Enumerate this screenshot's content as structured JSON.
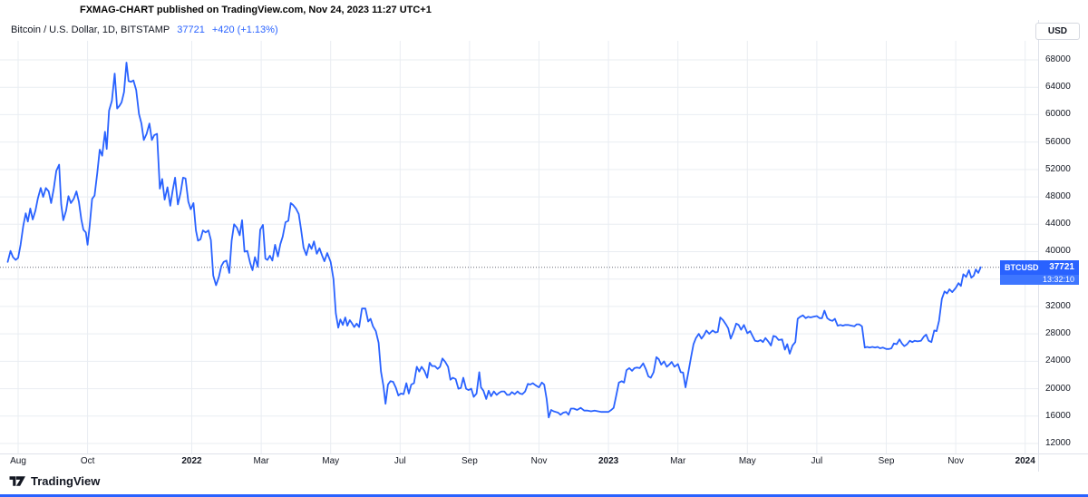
{
  "attribution": "FXMAG-CHART published on TradingView.com, Nov 24, 2023 11:27 UTC+1",
  "legend": {
    "symbol_text": "Bitcoin / U.S. Dollar, 1D, BITSTAMP",
    "price": "37721",
    "change": "+420 (+1.13%)"
  },
  "axis_currency_button": "USD",
  "price_badge": {
    "symbol": "BTCUSD",
    "price": "37721",
    "countdown": "13:32:10"
  },
  "footer": {
    "brand": "TradingView"
  },
  "colors": {
    "accent_blue": "#2962FF",
    "text_dark": "#131722",
    "grid": "#e9edf2",
    "axis_border": "#dfe2ea"
  },
  "chart_data": {
    "type": "line",
    "title": "Bitcoin / U.S. Dollar",
    "symbol": "BTCUSD",
    "exchange": "BITSTAMP",
    "interval": "1D",
    "y_axis_currency": "USD",
    "current_price": 37721,
    "change": "+420",
    "change_pct": "+1.13%",
    "x_unit": "months since 2021-08-01",
    "visible_ylim": [
      10500,
      70800
    ],
    "y_ticks": [
      68000,
      64000,
      60000,
      56000,
      52000,
      48000,
      44000,
      40000,
      36000,
      32000,
      28000,
      24000,
      20000,
      16000,
      12000
    ],
    "x_ticks": [
      {
        "label": "Aug",
        "t": 0
      },
      {
        "label": "Oct",
        "t": 2
      },
      {
        "label": "2022",
        "t": 5,
        "major": true
      },
      {
        "label": "Mar",
        "t": 7
      },
      {
        "label": "May",
        "t": 9
      },
      {
        "label": "Jul",
        "t": 11
      },
      {
        "label": "Sep",
        "t": 13
      },
      {
        "label": "Nov",
        "t": 15
      },
      {
        "label": "2023",
        "t": 17,
        "major": true
      },
      {
        "label": "Mar",
        "t": 19
      },
      {
        "label": "May",
        "t": 21
      },
      {
        "label": "Jul",
        "t": 23
      },
      {
        "label": "Sep",
        "t": 25
      },
      {
        "label": "Nov",
        "t": 27
      },
      {
        "label": "2024",
        "t": 29,
        "major": true
      }
    ],
    "points": [
      [
        -0.3,
        38500
      ],
      [
        -0.22,
        40100
      ],
      [
        -0.15,
        39200
      ],
      [
        -0.07,
        38800
      ],
      [
        0,
        39100
      ],
      [
        0.07,
        41000
      ],
      [
        0.15,
        43800
      ],
      [
        0.22,
        45600
      ],
      [
        0.28,
        44400
      ],
      [
        0.35,
        46300
      ],
      [
        0.42,
        44700
      ],
      [
        0.5,
        46000
      ],
      [
        0.57,
        47800
      ],
      [
        0.65,
        49300
      ],
      [
        0.72,
        48000
      ],
      [
        0.8,
        49300
      ],
      [
        0.88,
        48800
      ],
      [
        0.95,
        47100
      ],
      [
        1.03,
        49300
      ],
      [
        1.1,
        51800
      ],
      [
        1.18,
        52700
      ],
      [
        1.24,
        46900
      ],
      [
        1.3,
        44600
      ],
      [
        1.38,
        46000
      ],
      [
        1.45,
        48100
      ],
      [
        1.52,
        47100
      ],
      [
        1.6,
        47700
      ],
      [
        1.68,
        48800
      ],
      [
        1.75,
        47300
      ],
      [
        1.82,
        44700
      ],
      [
        1.88,
        43200
      ],
      [
        1.95,
        42800
      ],
      [
        2,
        41000
      ],
      [
        2.06,
        43800
      ],
      [
        2.13,
        47700
      ],
      [
        2.2,
        48200
      ],
      [
        2.28,
        51500
      ],
      [
        2.35,
        54900
      ],
      [
        2.42,
        54000
      ],
      [
        2.5,
        57500
      ],
      [
        2.55,
        55000
      ],
      [
        2.62,
        60600
      ],
      [
        2.7,
        62000
      ],
      [
        2.78,
        66000
      ],
      [
        2.85,
        60900
      ],
      [
        2.92,
        61300
      ],
      [
        2.98,
        61800
      ],
      [
        3.05,
        63300
      ],
      [
        3.12,
        67600
      ],
      [
        3.18,
        64900
      ],
      [
        3.25,
        64800
      ],
      [
        3.32,
        65000
      ],
      [
        3.4,
        63600
      ],
      [
        3.48,
        60100
      ],
      [
        3.55,
        58700
      ],
      [
        3.62,
        56300
      ],
      [
        3.7,
        57200
      ],
      [
        3.78,
        58700
      ],
      [
        3.85,
        56300
      ],
      [
        3.92,
        57000
      ],
      [
        4,
        57200
      ],
      [
        4.08,
        49200
      ],
      [
        4.15,
        50600
      ],
      [
        4.22,
        47600
      ],
      [
        4.3,
        49400
      ],
      [
        4.38,
        46700
      ],
      [
        4.45,
        48900
      ],
      [
        4.52,
        50800
      ],
      [
        4.6,
        46900
      ],
      [
        4.68,
        48600
      ],
      [
        4.75,
        50800
      ],
      [
        4.82,
        50700
      ],
      [
        4.9,
        47300
      ],
      [
        4.97,
        46200
      ],
      [
        5.05,
        47100
      ],
      [
        5.12,
        43100
      ],
      [
        5.18,
        41600
      ],
      [
        5.25,
        41800
      ],
      [
        5.32,
        43100
      ],
      [
        5.4,
        42800
      ],
      [
        5.48,
        43100
      ],
      [
        5.55,
        41700
      ],
      [
        5.62,
        36500
      ],
      [
        5.7,
        35100
      ],
      [
        5.78,
        36300
      ],
      [
        5.85,
        37900
      ],
      [
        5.92,
        38500
      ],
      [
        6,
        38700
      ],
      [
        6.08,
        36900
      ],
      [
        6.15,
        41600
      ],
      [
        6.22,
        44000
      ],
      [
        6.3,
        43500
      ],
      [
        6.38,
        42400
      ],
      [
        6.45,
        44600
      ],
      [
        6.52,
        40000
      ],
      [
        6.6,
        40100
      ],
      [
        6.68,
        38400
      ],
      [
        6.75,
        37300
      ],
      [
        6.82,
        39200
      ],
      [
        6.9,
        37800
      ],
      [
        6.97,
        43200
      ],
      [
        7.05,
        43900
      ],
      [
        7.12,
        39000
      ],
      [
        7.18,
        38800
      ],
      [
        7.25,
        39400
      ],
      [
        7.32,
        38700
      ],
      [
        7.4,
        41000
      ],
      [
        7.48,
        39300
      ],
      [
        7.55,
        41100
      ],
      [
        7.62,
        42200
      ],
      [
        7.7,
        44300
      ],
      [
        7.78,
        44500
      ],
      [
        7.85,
        47100
      ],
      [
        7.92,
        46800
      ],
      [
        8,
        46300
      ],
      [
        8.08,
        45500
      ],
      [
        8.15,
        43200
      ],
      [
        8.22,
        40600
      ],
      [
        8.3,
        39500
      ],
      [
        8.38,
        41100
      ],
      [
        8.45,
        40400
      ],
      [
        8.52,
        41500
      ],
      [
        8.6,
        39700
      ],
      [
        8.68,
        40500
      ],
      [
        8.75,
        39500
      ],
      [
        8.82,
        38600
      ],
      [
        8.9,
        39800
      ],
      [
        9,
        38500
      ],
      [
        9.08,
        36000
      ],
      [
        9.15,
        31000
      ],
      [
        9.22,
        28900
      ],
      [
        9.28,
        30100
      ],
      [
        9.35,
        29300
      ],
      [
        9.42,
        30400
      ],
      [
        9.48,
        29200
      ],
      [
        9.55,
        30000
      ],
      [
        9.62,
        29500
      ],
      [
        9.68,
        29000
      ],
      [
        9.75,
        29500
      ],
      [
        9.82,
        29000
      ],
      [
        9.9,
        31700
      ],
      [
        10,
        31700
      ],
      [
        10.08,
        29800
      ],
      [
        10.15,
        30200
      ],
      [
        10.22,
        29100
      ],
      [
        10.3,
        28400
      ],
      [
        10.38,
        26700
      ],
      [
        10.45,
        22500
      ],
      [
        10.52,
        20400
      ],
      [
        10.58,
        17800
      ],
      [
        10.65,
        20600
      ],
      [
        10.72,
        21100
      ],
      [
        10.8,
        21000
      ],
      [
        10.88,
        20100
      ],
      [
        10.95,
        19000
      ],
      [
        11.02,
        19300
      ],
      [
        11.1,
        19200
      ],
      [
        11.18,
        20800
      ],
      [
        11.25,
        19300
      ],
      [
        11.32,
        20600
      ],
      [
        11.4,
        20800
      ],
      [
        11.48,
        23200
      ],
      [
        11.55,
        22500
      ],
      [
        11.62,
        23200
      ],
      [
        11.7,
        22600
      ],
      [
        11.78,
        21600
      ],
      [
        11.85,
        23800
      ],
      [
        11.92,
        23300
      ],
      [
        12,
        23300
      ],
      [
        12.08,
        22900
      ],
      [
        12.15,
        23200
      ],
      [
        12.22,
        24400
      ],
      [
        12.3,
        23900
      ],
      [
        12.38,
        23200
      ],
      [
        12.45,
        21300
      ],
      [
        12.52,
        21600
      ],
      [
        12.6,
        21400
      ],
      [
        12.68,
        20000
      ],
      [
        12.75,
        20100
      ],
      [
        12.82,
        21600
      ],
      [
        12.9,
        20000
      ],
      [
        12.97,
        19800
      ],
      [
        13.05,
        20000
      ],
      [
        13.12,
        18800
      ],
      [
        13.2,
        19300
      ],
      [
        13.28,
        22400
      ],
      [
        13.33,
        20200
      ],
      [
        13.4,
        19700
      ],
      [
        13.48,
        18500
      ],
      [
        13.55,
        19700
      ],
      [
        13.62,
        18900
      ],
      [
        13.7,
        19600
      ],
      [
        13.78,
        19100
      ],
      [
        13.85,
        19400
      ],
      [
        13.92,
        19600
      ],
      [
        14,
        19600
      ],
      [
        14.08,
        19100
      ],
      [
        14.15,
        19100
      ],
      [
        14.22,
        19500
      ],
      [
        14.3,
        19200
      ],
      [
        14.38,
        19600
      ],
      [
        14.45,
        19300
      ],
      [
        14.52,
        19200
      ],
      [
        14.6,
        19600
      ],
      [
        14.68,
        20700
      ],
      [
        14.75,
        20600
      ],
      [
        14.82,
        20800
      ],
      [
        14.9,
        20500
      ],
      [
        15,
        20200
      ],
      [
        15.08,
        20900
      ],
      [
        15.15,
        20600
      ],
      [
        15.22,
        18500
      ],
      [
        15.28,
        15800
      ],
      [
        15.35,
        16900
      ],
      [
        15.42,
        16700
      ],
      [
        15.48,
        16600
      ],
      [
        15.55,
        16500
      ],
      [
        15.62,
        16200
      ],
      [
        15.7,
        16500
      ],
      [
        15.78,
        16600
      ],
      [
        15.85,
        16200
      ],
      [
        15.92,
        17100
      ],
      [
        16,
        17100
      ],
      [
        16.1,
        16900
      ],
      [
        16.2,
        17200
      ],
      [
        16.3,
        16800
      ],
      [
        16.4,
        16800
      ],
      [
        16.5,
        16700
      ],
      [
        16.6,
        16800
      ],
      [
        16.7,
        16700
      ],
      [
        16.8,
        16600
      ],
      [
        16.9,
        16600
      ],
      [
        17,
        16600
      ],
      [
        17.08,
        16900
      ],
      [
        17.15,
        17200
      ],
      [
        17.22,
        18900
      ],
      [
        17.3,
        20900
      ],
      [
        17.38,
        21100
      ],
      [
        17.45,
        20900
      ],
      [
        17.52,
        22700
      ],
      [
        17.6,
        23000
      ],
      [
        17.68,
        22600
      ],
      [
        17.75,
        23000
      ],
      [
        17.82,
        23100
      ],
      [
        17.9,
        23000
      ],
      [
        18,
        23700
      ],
      [
        18.08,
        22800
      ],
      [
        18.15,
        21800
      ],
      [
        18.22,
        21600
      ],
      [
        18.3,
        22400
      ],
      [
        18.38,
        24600
      ],
      [
        18.45,
        24300
      ],
      [
        18.52,
        23500
      ],
      [
        18.6,
        24000
      ],
      [
        18.68,
        23200
      ],
      [
        18.75,
        23500
      ],
      [
        18.82,
        23900
      ],
      [
        18.9,
        23200
      ],
      [
        19,
        23600
      ],
      [
        19.08,
        22400
      ],
      [
        19.15,
        22350
      ],
      [
        19.22,
        20200
      ],
      [
        19.3,
        22400
      ],
      [
        19.38,
        24700
      ],
      [
        19.45,
        26500
      ],
      [
        19.52,
        27400
      ],
      [
        19.6,
        28000
      ],
      [
        19.68,
        27300
      ],
      [
        19.75,
        27800
      ],
      [
        19.82,
        28500
      ],
      [
        19.9,
        28000
      ],
      [
        20,
        28500
      ],
      [
        20.08,
        28200
      ],
      [
        20.15,
        28300
      ],
      [
        20.22,
        30400
      ],
      [
        20.3,
        30000
      ],
      [
        20.38,
        29400
      ],
      [
        20.45,
        28800
      ],
      [
        20.52,
        27300
      ],
      [
        20.6,
        28300
      ],
      [
        20.68,
        29500
      ],
      [
        20.75,
        29300
      ],
      [
        20.82,
        28600
      ],
      [
        20.9,
        29300
      ],
      [
        21,
        28100
      ],
      [
        21.08,
        28400
      ],
      [
        21.15,
        27700
      ],
      [
        21.22,
        27000
      ],
      [
        21.3,
        26900
      ],
      [
        21.38,
        27100
      ],
      [
        21.45,
        26800
      ],
      [
        21.52,
        27400
      ],
      [
        21.6,
        26900
      ],
      [
        21.68,
        26300
      ],
      [
        21.75,
        27700
      ],
      [
        21.82,
        27600
      ],
      [
        21.9,
        27100
      ],
      [
        22,
        27200
      ],
      [
        22.08,
        25700
      ],
      [
        22.15,
        26500
      ],
      [
        22.22,
        25100
      ],
      [
        22.3,
        26300
      ],
      [
        22.38,
        26800
      ],
      [
        22.45,
        30200
      ],
      [
        22.52,
        30500
      ],
      [
        22.6,
        30700
      ],
      [
        22.68,
        30300
      ],
      [
        22.75,
        30500
      ],
      [
        22.82,
        30400
      ],
      [
        22.9,
        30500
      ],
      [
        23,
        30600
      ],
      [
        23.08,
        30300
      ],
      [
        23.15,
        30300
      ],
      [
        23.22,
        31400
      ],
      [
        23.3,
        30300
      ],
      [
        23.38,
        30000
      ],
      [
        23.45,
        29900
      ],
      [
        23.52,
        30200
      ],
      [
        23.6,
        29200
      ],
      [
        23.68,
        29300
      ],
      [
        23.75,
        29200
      ],
      [
        23.82,
        29300
      ],
      [
        23.9,
        29300
      ],
      [
        24,
        29200
      ],
      [
        24.08,
        29100
      ],
      [
        24.15,
        29400
      ],
      [
        24.22,
        29400
      ],
      [
        24.3,
        29100
      ],
      [
        24.38,
        26000
      ],
      [
        24.45,
        26100
      ],
      [
        24.52,
        26000
      ],
      [
        24.6,
        26100
      ],
      [
        24.68,
        26000
      ],
      [
        24.75,
        26100
      ],
      [
        24.82,
        25900
      ],
      [
        24.9,
        26000
      ],
      [
        25,
        25800
      ],
      [
        25.08,
        25800
      ],
      [
        25.15,
        25900
      ],
      [
        25.22,
        26600
      ],
      [
        25.3,
        26500
      ],
      [
        25.38,
        27200
      ],
      [
        25.45,
        26600
      ],
      [
        25.52,
        26200
      ],
      [
        25.6,
        26500
      ],
      [
        25.68,
        27000
      ],
      [
        25.75,
        26800
      ],
      [
        25.82,
        27000
      ],
      [
        25.9,
        26900
      ],
      [
        26,
        27000
      ],
      [
        26.08,
        27600
      ],
      [
        26.15,
        27900
      ],
      [
        26.22,
        27000
      ],
      [
        26.3,
        26800
      ],
      [
        26.38,
        28500
      ],
      [
        26.45,
        28400
      ],
      [
        26.52,
        29900
      ],
      [
        26.6,
        33100
      ],
      [
        26.68,
        34200
      ],
      [
        26.75,
        33900
      ],
      [
        26.82,
        34500
      ],
      [
        26.9,
        34100
      ],
      [
        27,
        34700
      ],
      [
        27.08,
        35400
      ],
      [
        27.15,
        35000
      ],
      [
        27.22,
        36700
      ],
      [
        27.3,
        36300
      ],
      [
        27.38,
        37300
      ],
      [
        27.45,
        36200
      ],
      [
        27.52,
        36500
      ],
      [
        27.58,
        37400
      ],
      [
        27.65,
        36900
      ],
      [
        27.72,
        37721
      ]
    ]
  }
}
